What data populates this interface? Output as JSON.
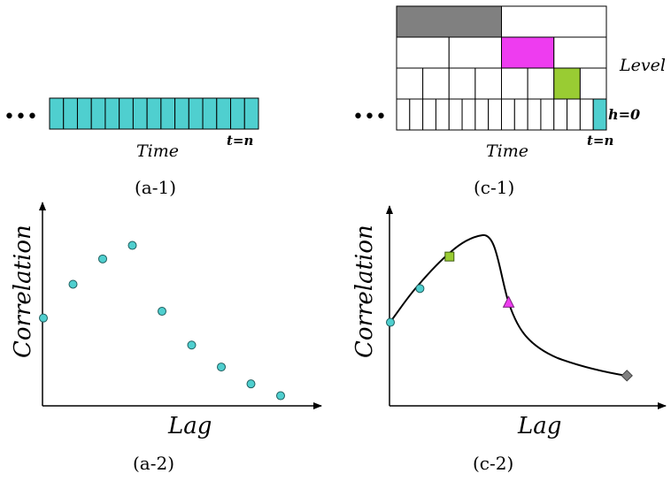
{
  "panel_a1": {
    "caption": "(a-1)",
    "ellipsis": "•••",
    "time_label": "Time",
    "t_label": "t=n",
    "cell_count": 15,
    "cell_color": "#4fcfcf"
  },
  "panel_c1": {
    "caption": "(c-1)",
    "ellipsis": "•••",
    "time_label": "Time",
    "t_label": "t=n",
    "level_label": "Level",
    "h_label": "h=0",
    "levels": [
      {
        "cells": 2,
        "highlight_index": 0,
        "highlight_color": "#808080"
      },
      {
        "cells": 4,
        "highlight_index": 2,
        "highlight_color": "#ee3cf0"
      },
      {
        "cells": 8,
        "highlight_index": 6,
        "highlight_color": "#99cc33"
      },
      {
        "cells": 16,
        "highlight_index": 15,
        "highlight_color": "#4fcfcf"
      }
    ]
  },
  "panel_a2": {
    "caption": "(a-2)",
    "ylabel": "Correlation",
    "xlabel": "Lag",
    "point_color": "#4fcfcf"
  },
  "panel_c2": {
    "caption": "(c-2)",
    "ylabel": "Correlation",
    "xlabel": "Lag",
    "marker_colors": {
      "circle": "#4fcfcf",
      "square": "#99cc33",
      "triangle": "#ee3cf0",
      "diamond": "#808080"
    }
  },
  "chart_data": [
    {
      "type": "scatter",
      "xlabel": "Lag",
      "ylabel": "Correlation",
      "x": [
        0,
        1,
        2,
        3,
        4,
        5,
        6,
        7,
        8
      ],
      "y": [
        0.52,
        0.72,
        0.87,
        0.95,
        0.56,
        0.36,
        0.23,
        0.13,
        0.06
      ]
    },
    {
      "type": "line",
      "xlabel": "Lag",
      "ylabel": "Correlation",
      "curve": {
        "x": [
          0,
          1,
          2,
          3,
          4,
          5,
          6,
          7,
          8
        ],
        "y": [
          0.47,
          0.66,
          0.84,
          0.98,
          0.58,
          0.27,
          0.2,
          0.18,
          0.17
        ]
      },
      "markers": [
        {
          "shape": "circle",
          "x": 0,
          "y": 0.47
        },
        {
          "shape": "circle",
          "x": 1,
          "y": 0.66
        },
        {
          "shape": "square",
          "x": 2,
          "y": 0.84
        },
        {
          "shape": "triangle",
          "x": 4,
          "y": 0.58
        },
        {
          "shape": "diamond",
          "x": 8,
          "y": 0.17
        }
      ]
    }
  ]
}
